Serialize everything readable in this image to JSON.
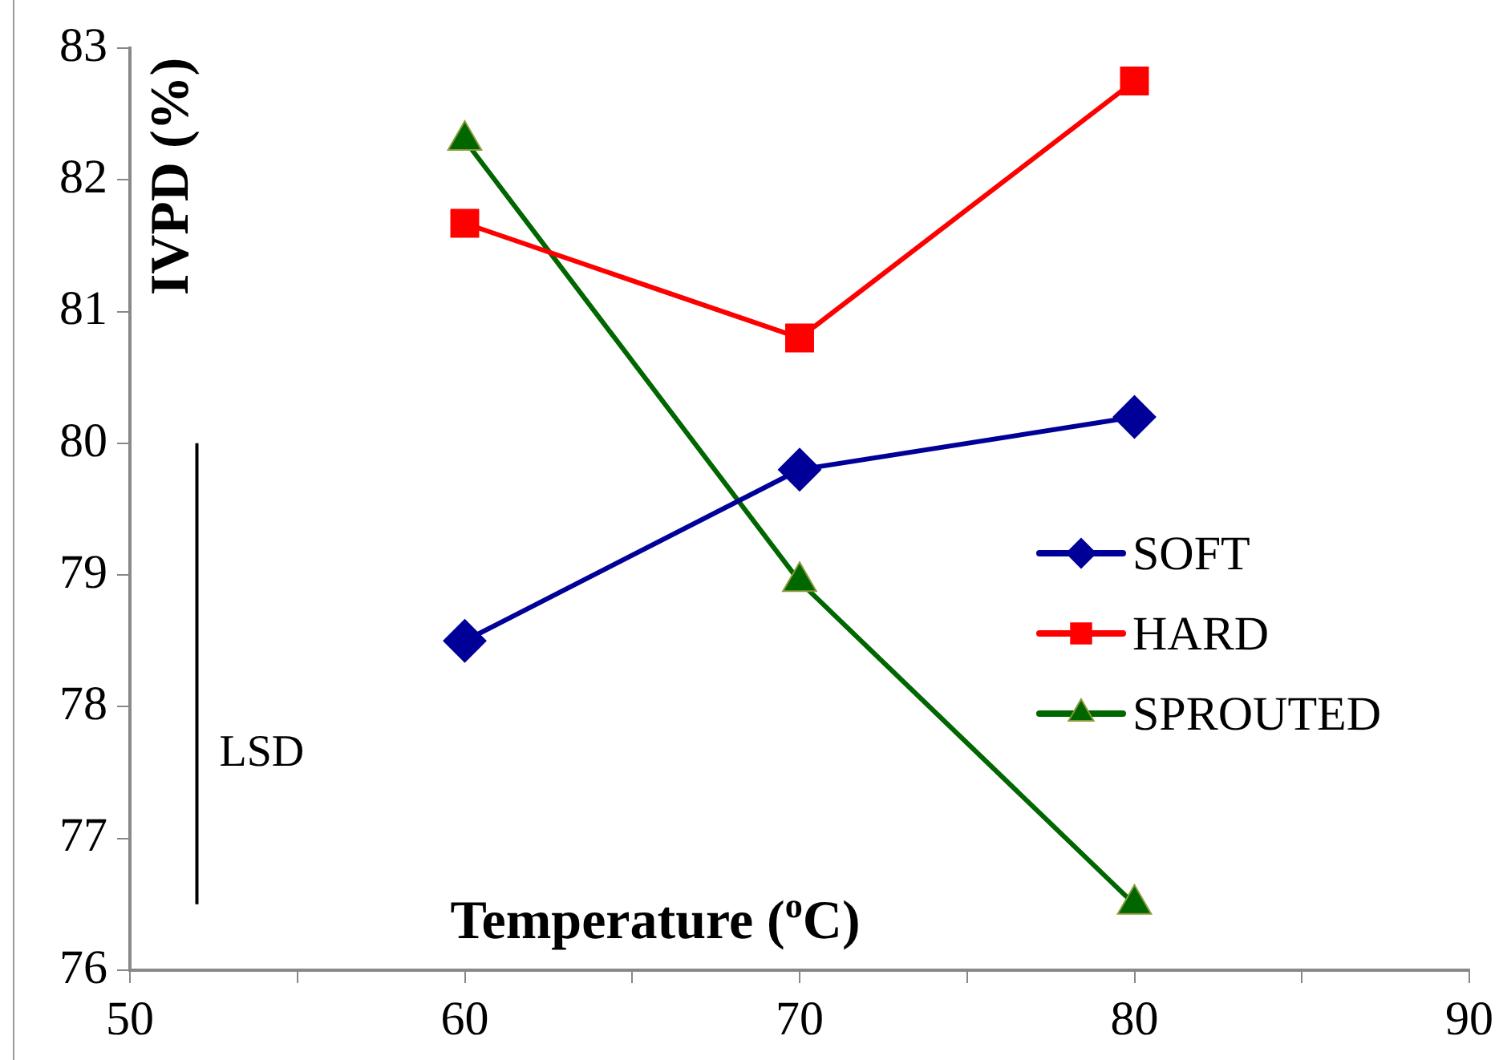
{
  "chart_data": {
    "type": "line",
    "xlabel": "Temperature ($^{o}$C)",
    "ylabel": "IVPD (%)",
    "x": [
      60,
      70,
      80
    ],
    "series": [
      {
        "name": "SOFT",
        "color": "#000099",
        "marker": "diamond",
        "values": [
          78.5,
          79.8,
          80.2
        ]
      },
      {
        "name": "HARD",
        "color": "#ff0000",
        "marker": "square",
        "values": [
          81.67,
          80.8,
          82.75
        ]
      },
      {
        "name": "SPROUTED",
        "color": "#006600",
        "marker": "triangle",
        "values": [
          82.3,
          78.95,
          76.5
        ]
      },
      {
        "type": "line",
        "color": "#000000",
        "marker": "none",
        "x": [
          52,
          52
        ],
        "values": [
          76.5,
          80
        ]
      }
    ],
    "annotations": [
      "LSD"
    ],
    "xlim": [
      50,
      90
    ],
    "xticks": [
      50,
      {
        "value": 55,
        "label": null
      },
      60,
      {
        "value": 65,
        "label": null
      },
      70,
      {
        "value": 75,
        "label": null
      },
      80,
      {
        "value": 85,
        "label": null
      },
      90
    ],
    "ylim": [
      76,
      83
    ],
    "yticks": [
      76,
      77,
      78,
      79,
      80,
      81,
      82,
      83
    ],
    "grid": false,
    "legend": "right",
    "line_style": "solid"
  }
}
